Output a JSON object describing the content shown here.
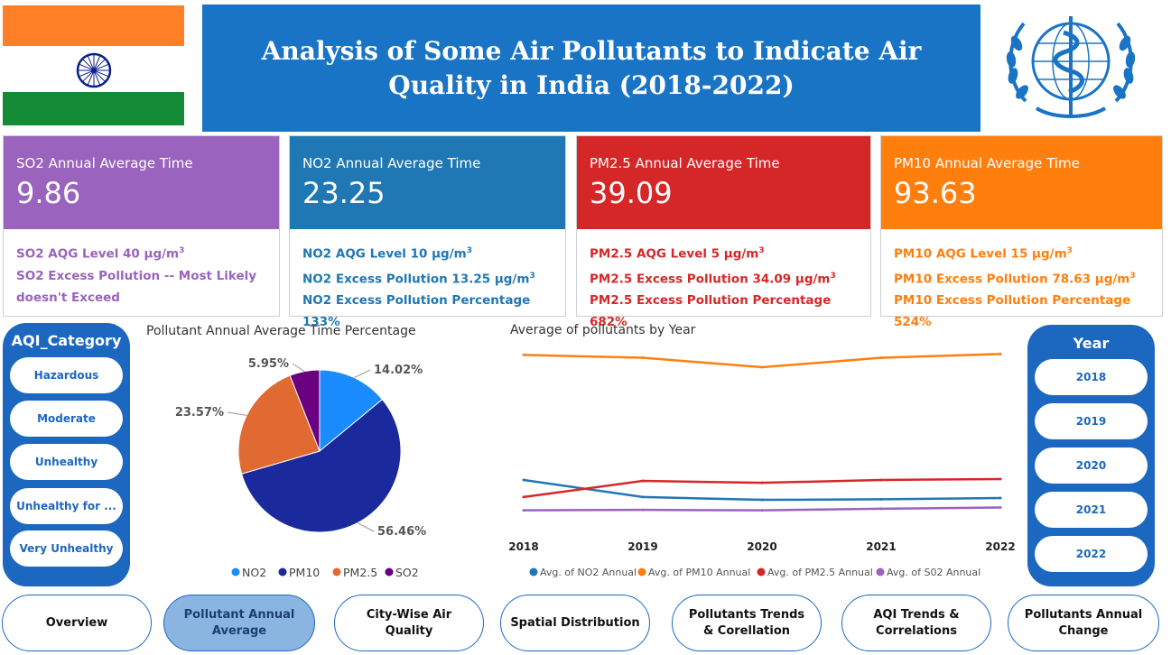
{
  "title": "Analysis of Some Air Pollutants to Indicate Air Quality in India (2018-2022)",
  "cards": [
    {
      "key": "so2",
      "title": "SO2 Annual Average Time",
      "value": "9.86",
      "lines": [
        "SO2 AQG Level 40 μg/m",
        "SO2 Excess Pollution -- Most Likely doesn't Exceed"
      ],
      "supFirst": true
    },
    {
      "key": "no2",
      "title": "NO2 Annual Average Time",
      "value": "23.25",
      "lines": [
        "NO2 AQG Level 10 μg/m",
        "NO2 Excess Pollution 13.25 μg/m",
        "NO2 Excess Pollution Percentage 133%"
      ]
    },
    {
      "key": "pm25",
      "title": "PM2.5 Annual Average Time",
      "value": "39.09",
      "lines": [
        "PM2.5 AQG Level 5 μg/m",
        "PM2.5 Excess Pollution 34.09 μg/m",
        "PM2.5 Excess Pollution Percentage 682%"
      ]
    },
    {
      "key": "pm10",
      "title": "PM10 Annual Average Time",
      "value": "93.63",
      "lines": [
        "PM10 AQG Level 15 μg/m",
        "PM10 Excess Pollution 78.63 μg/m",
        "PM10 Excess Pollution Percentage 524%"
      ]
    }
  ],
  "sup": "3",
  "aqi_slicer": {
    "title": "AQI_Category",
    "options": [
      "Hazardous",
      "Moderate",
      "Unhealthy",
      "Unhealthy for ...",
      "Very Unhealthy"
    ]
  },
  "year_slicer": {
    "title": "Year",
    "options": [
      "2018",
      "2019",
      "2020",
      "2021",
      "2022"
    ]
  },
  "pie_title": "Pollutant Annual Average Time Percentage",
  "line_title": "Average of pollutants by Year",
  "chart_data": [
    {
      "type": "pie",
      "title": "Pollutant Annual Average Time Percentage",
      "labels": [
        "NO2",
        "PM10",
        "PM2.5",
        "SO2"
      ],
      "values": [
        14.02,
        56.46,
        23.57,
        5.95
      ],
      "data_labels": [
        "14.02%",
        "56.46%",
        "23.57%",
        "5.95%"
      ],
      "colors": [
        "#1a8cff",
        "#1a2a9c",
        "#e06a32",
        "#6a0080"
      ],
      "legend": "bottom"
    },
    {
      "type": "line",
      "title": "Average of pollutants by Year",
      "x": [
        "2018",
        "2019",
        "2020",
        "2021",
        "2022"
      ],
      "ylim": [
        0,
        100
      ],
      "grid": false,
      "legend": "bottom",
      "series": [
        {
          "name": "Avg. of NO2 Annual",
          "color": "#1f77b4",
          "values": [
            30,
            21,
            19.5,
            19.8,
            20.5
          ]
        },
        {
          "name": "Avg. of PM10 Annual",
          "color": "#ff7f0e",
          "values": [
            96,
            94.5,
            89.5,
            94.5,
            96.5
          ]
        },
        {
          "name": "Avg. of PM2.5 Annual",
          "color": "#d62728",
          "values": [
            21,
            29.5,
            28.5,
            30,
            30.5
          ]
        },
        {
          "name": "Avg. of S02 Annual",
          "color": "#9a63bd",
          "values": [
            14,
            14.2,
            14,
            14.8,
            15.5
          ]
        }
      ]
    }
  ],
  "nav": [
    {
      "label": "Overview",
      "active": false
    },
    {
      "label": "Pollutant Annual Average",
      "active": true
    },
    {
      "label": "City-Wise Air Quality",
      "active": false
    },
    {
      "label": "Spatial Distribution",
      "active": false
    },
    {
      "label": "Pollutants Trends & Corellation",
      "active": false
    },
    {
      "label": "AQI Trends & Correlations",
      "active": false
    },
    {
      "label": "Pollutants Annual Change",
      "active": false
    }
  ]
}
